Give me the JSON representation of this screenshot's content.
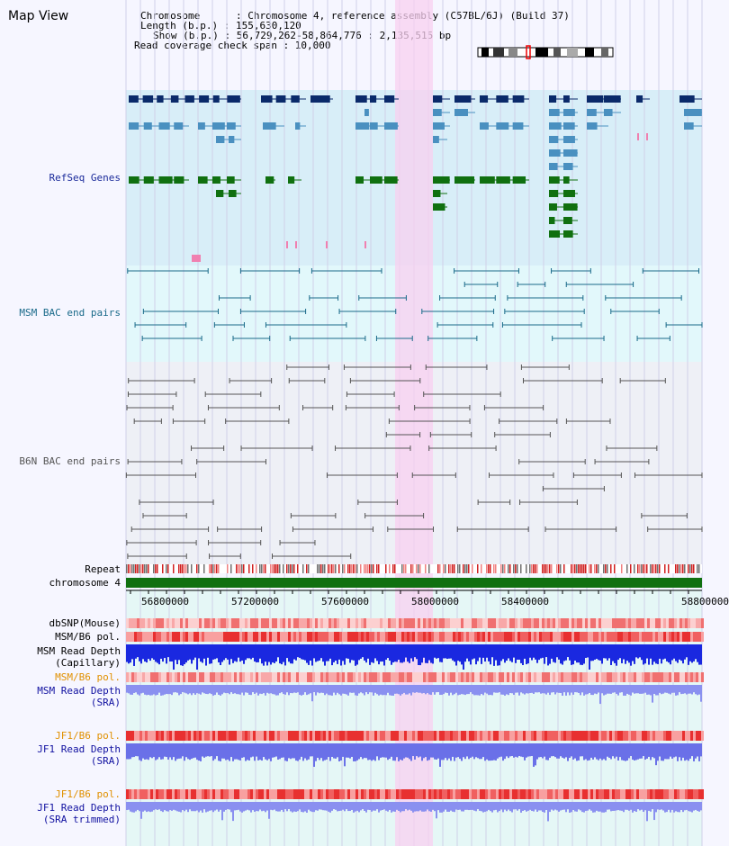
{
  "title": "Map View",
  "info": {
    "chromosome": "Chromosome      : Chromosome 4, reference assembly (C57BL/6J) (Build 37)",
    "length": "Length (b.p.) : 155,630,120",
    "show": "Show (b.p.) : 56,729,262-58,864,776 : 2,135,515 bp",
    "span": "Read coverage check span : 10,000"
  },
  "labels": {
    "refseq": "RefSeq Genes",
    "msm_bac": "MSM BAC end pairs",
    "b6n_bac": "B6N BAC end pairs",
    "repeat": "Repeat",
    "chromosome": "chromosome 4",
    "dbsnp": "dbSNP(Mouse)",
    "msm_pol1": "MSM/B6 pol.",
    "msm_depth_cap1": "MSM Read Depth",
    "msm_depth_cap2": "(Capillary)",
    "msm_pol2": "MSM/B6 pol.",
    "msm_depth_sra1": "MSM Read Depth",
    "msm_depth_sra2": "(SRA)",
    "jf1_pol1": "JF1/B6 pol.",
    "jf1_depth1": "JF1 Read Depth",
    "jf1_depth2": "(SRA)",
    "jf1_pol2": "JF1/B6 pol.",
    "jf1_depth_trim1": "JF1 Read Depth",
    "jf1_depth_trim2": "(SRA trimmed)"
  },
  "axis_ticks": [
    "56800000",
    "57200000",
    "57600000",
    "58000000",
    "58400000",
    "58800000"
  ],
  "colors": {
    "refseq_bg": "#d8eef8",
    "msm_bg": "#e2f8fb",
    "b6n_bg": "#eef0f6",
    "highlight": "#f8d0f0",
    "refseq_dark": "#0a2a6a",
    "refseq_mid": "#4a90c0",
    "refseq_green": "#107010",
    "msm_line": "#1a6a8a",
    "b6n_line": "#555555",
    "chrom_bar": "#107010"
  }
}
